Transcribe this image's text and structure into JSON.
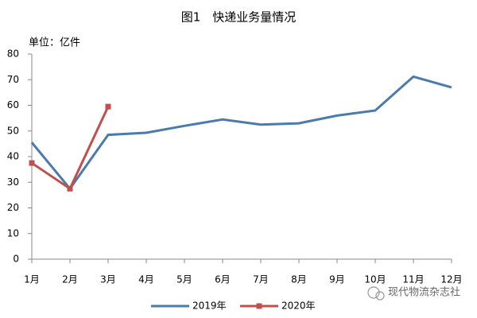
{
  "chart_data": {
    "type": "line",
    "title": "图1　快递业务量情况",
    "unit_label": "单位：亿件",
    "categories": [
      "1月",
      "2月",
      "3月",
      "4月",
      "5月",
      "6月",
      "7月",
      "8月",
      "9月",
      "10月",
      "11月",
      "12月"
    ],
    "series": [
      {
        "name": "2019年",
        "color": "#4a7bab",
        "values": [
          45.5,
          27.5,
          48.5,
          49.3,
          52,
          54.5,
          52.5,
          53,
          56,
          58,
          71.2,
          67
        ]
      },
      {
        "name": "2020年",
        "color": "#c0504d",
        "marker": "square",
        "values": [
          37.5,
          27.5,
          59.5,
          null,
          null,
          null,
          null,
          null,
          null,
          null,
          null,
          null
        ]
      }
    ],
    "ylim": [
      0,
      80
    ],
    "yticks": [
      0,
      10,
      20,
      30,
      40,
      50,
      60,
      70,
      80
    ],
    "grid": false,
    "legend": "bottom",
    "watermark": "现代物流杂志社"
  }
}
